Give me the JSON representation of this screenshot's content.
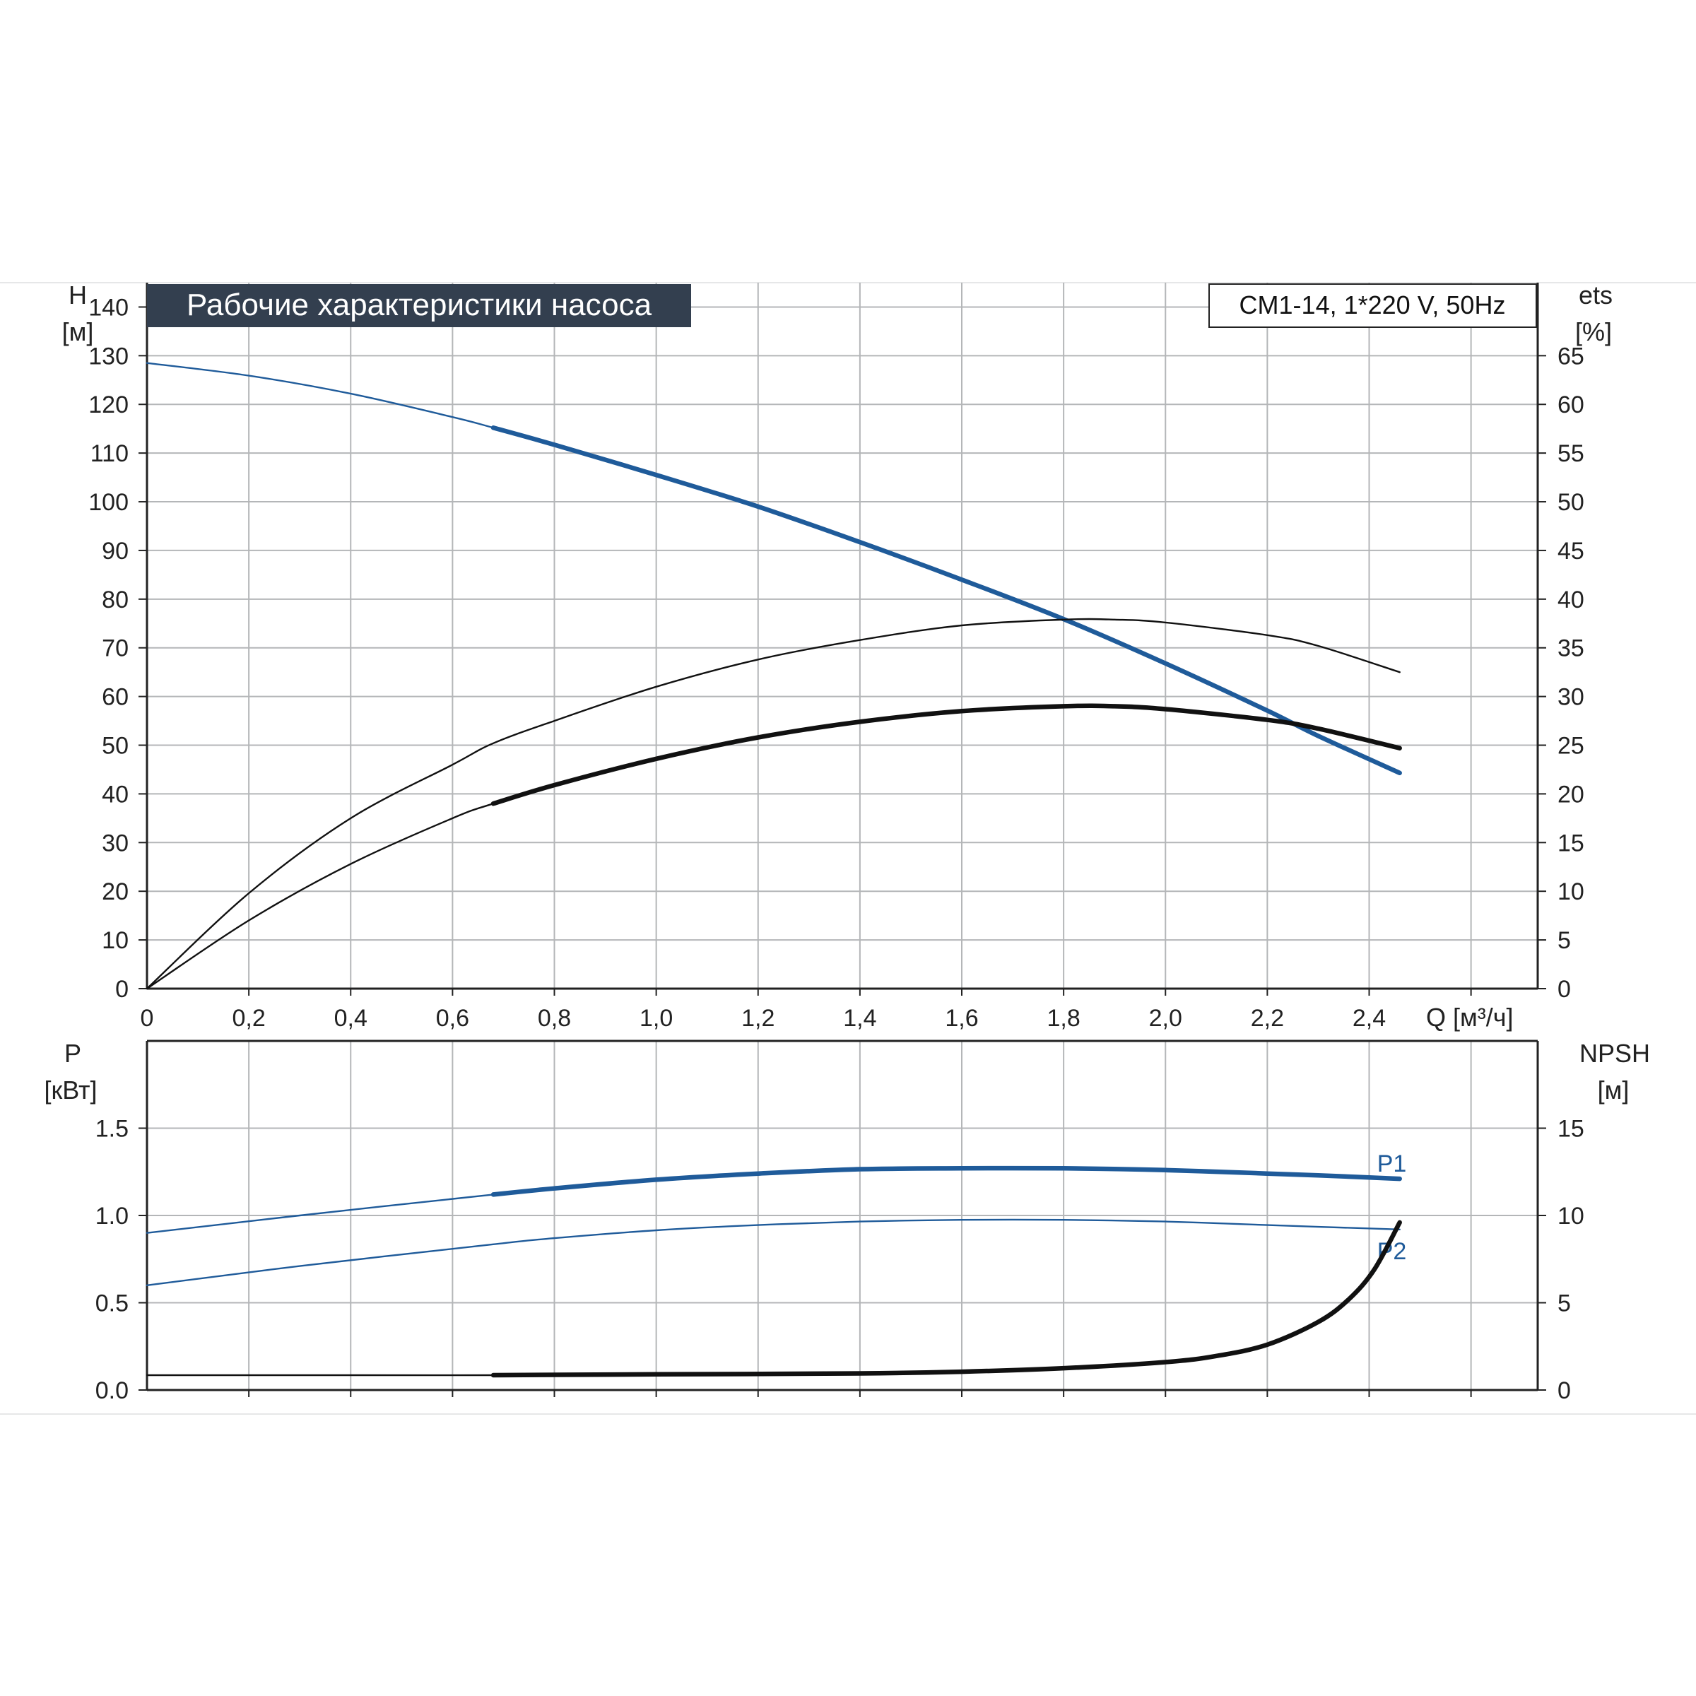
{
  "colors": {
    "blue": "#1f5b9a",
    "black": "#111111",
    "grid": "#b4b6b8",
    "title_bg": "#333f4f",
    "title_fg": "#ffffff",
    "axis": "#222222"
  },
  "chart_data": [
    {
      "type": "line",
      "title": "Рабочие характеристики насоса",
      "subtitle": "CM1-14, 1*220 V, 50Hz",
      "xlabel": "Q [м³/ч]",
      "ylabel": "H",
      "ylabel_unit": "[м]",
      "y2label": "ets",
      "y2label_unit": "[%]",
      "xlim": [
        0,
        2.7
      ],
      "ylim": [
        0,
        145
      ],
      "y2lim": [
        0,
        72.5
      ],
      "grid": true,
      "xticks": [
        "0",
        "0,2",
        "0,4",
        "0,6",
        "0,8",
        "1,0",
        "1,2",
        "1,4",
        "1,6",
        "1,8",
        "2,0",
        "2,2",
        "2,4"
      ],
      "yticks": [
        "0",
        "10",
        "20",
        "30",
        "40",
        "50",
        "60",
        "70",
        "80",
        "90",
        "100",
        "110",
        "120",
        "130",
        "140"
      ],
      "y2ticks": [
        "0",
        "5",
        "10",
        "15",
        "20",
        "25",
        "30",
        "35",
        "40",
        "45",
        "50",
        "55",
        "60",
        "65"
      ],
      "series": [
        {
          "axis": "left",
          "color": "blue",
          "x": [
            0,
            0.2,
            0.4,
            0.6,
            0.68,
            0.8,
            1.0,
            1.2,
            1.4,
            1.6,
            1.8,
            2.0,
            2.2,
            2.3,
            2.46
          ],
          "values": [
            128.5,
            125.9,
            122.2,
            117.4,
            115.2,
            111.7,
            105.5,
            99,
            91.7,
            84,
            75.9,
            66.8,
            57.1,
            51.9,
            44.3
          ],
          "bold_from": 0.68
        },
        {
          "axis": "right",
          "color": "black",
          "x": [
            0,
            0.2,
            0.4,
            0.6,
            0.68,
            0.8,
            1.0,
            1.2,
            1.4,
            1.6,
            1.8,
            1.9,
            2.0,
            2.2,
            2.3,
            2.46
          ],
          "values": [
            0,
            9.8,
            17.5,
            23,
            25.2,
            27.5,
            31,
            33.8,
            35.8,
            37.3,
            37.9,
            37.9,
            37.6,
            36.3,
            35.2,
            32.5
          ],
          "bold_from": null
        },
        {
          "axis": "right",
          "color": "black",
          "x": [
            0,
            0.2,
            0.4,
            0.6,
            0.68,
            0.8,
            1.0,
            1.2,
            1.4,
            1.6,
            1.8,
            1.9,
            2.0,
            2.2,
            2.3,
            2.46
          ],
          "values": [
            0,
            7,
            12.8,
            17.5,
            19,
            20.9,
            23.6,
            25.8,
            27.4,
            28.5,
            29,
            29,
            28.7,
            27.6,
            26.7,
            24.7
          ],
          "bold_from": 0.68
        }
      ]
    },
    {
      "type": "line",
      "xlim": [
        0,
        2.7
      ],
      "ylabel": "P",
      "ylabel_unit": "[кВт]",
      "y2label": "NPSH",
      "y2label_unit": "[м]",
      "ylim": [
        0,
        2
      ],
      "y2lim": [
        0,
        20
      ],
      "grid": true,
      "yticks": [
        "0.0",
        "0.5",
        "1.0",
        "1.5"
      ],
      "y2ticks": [
        "0",
        "5",
        "10",
        "15"
      ],
      "series": [
        {
          "name": "P1",
          "axis": "left",
          "color": "blue",
          "x": [
            0,
            0.3,
            0.68,
            0.8,
            1.0,
            1.2,
            1.4,
            1.6,
            1.8,
            2.0,
            2.2,
            2.3,
            2.46
          ],
          "values": [
            0.9,
            1.0,
            1.12,
            1.155,
            1.205,
            1.24,
            1.265,
            1.27,
            1.27,
            1.26,
            1.24,
            1.23,
            1.21
          ],
          "bold_from": 0.68
        },
        {
          "name": "P2",
          "axis": "left",
          "color": "blue",
          "x": [
            0,
            0.3,
            0.68,
            0.8,
            1.0,
            1.2,
            1.4,
            1.6,
            1.8,
            2.0,
            2.2,
            2.3,
            2.46
          ],
          "values": [
            0.6,
            0.71,
            0.835,
            0.87,
            0.915,
            0.945,
            0.965,
            0.975,
            0.975,
            0.965,
            0.945,
            0.935,
            0.92
          ],
          "bold_from": null
        },
        {
          "axis": "right",
          "color": "black",
          "x": [
            0,
            0.4,
            0.68,
            1.0,
            1.4,
            1.6,
            1.8,
            2.0,
            2.1,
            2.2,
            2.3,
            2.36,
            2.41,
            2.46
          ],
          "values": [
            0.85,
            0.85,
            0.85,
            0.9,
            0.95,
            1.05,
            1.25,
            1.6,
            1.95,
            2.6,
            3.9,
            5.2,
            6.9,
            9.6
          ],
          "bold_from": 0.68
        }
      ]
    }
  ]
}
